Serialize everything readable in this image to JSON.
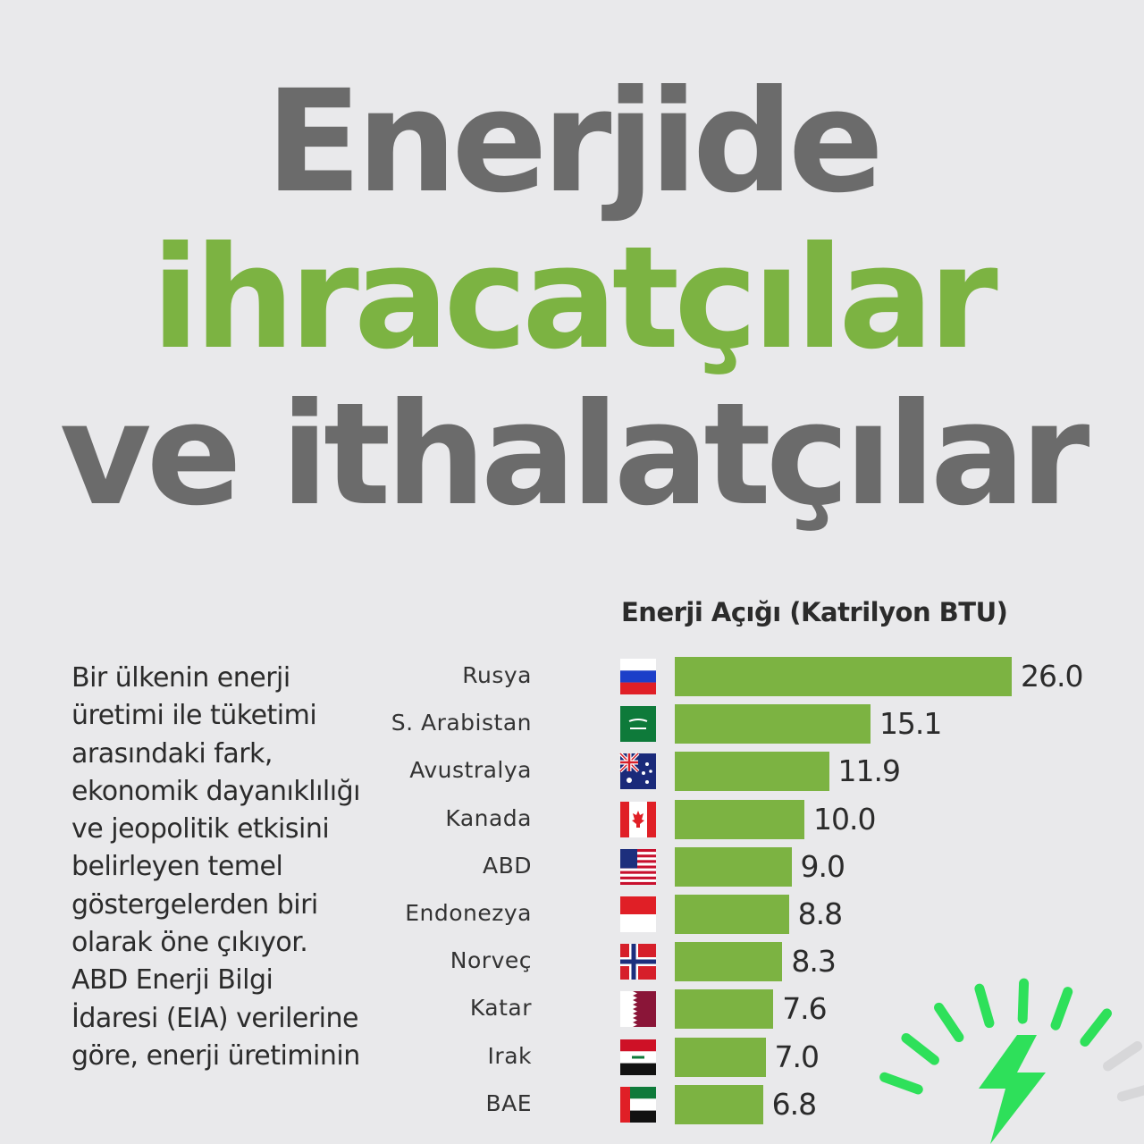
{
  "title": {
    "line1": "Enerjide",
    "line2": "ihracatçılar",
    "line3": "ve ithalatçılar"
  },
  "body_text": "Bir ülkenin enerji üretimi ile tüketimi arasındaki fark, ekonomik dayanıklılığı ve jeopolitik etkisini belirleyen temel göstergelerden biri olarak öne çıkıyor. ABD Enerji Bilgi İdaresi (EIA) verilerine göre, enerji üretiminin",
  "chart_data": {
    "type": "bar",
    "orientation": "horizontal",
    "title": "Enerji Açığı (Katrilyon BTU)",
    "categories": [
      "Rusya",
      "S. Arabistan",
      "Avustralya",
      "Kanada",
      "ABD",
      "Endonezya",
      "Norveç",
      "Katar",
      "Irak",
      "BAE"
    ],
    "values": [
      26.0,
      15.1,
      11.9,
      10.0,
      9.0,
      8.8,
      8.3,
      7.6,
      7.0,
      6.8
    ],
    "value_labels": [
      "26.0",
      "15.1",
      "11.9",
      "10.0",
      "9.0",
      "8.8",
      "8.3",
      "7.6",
      "7.0",
      "6.8"
    ],
    "flags": [
      "russia-flag-icon",
      "saudi-arabia-flag-icon",
      "australia-flag-icon",
      "canada-flag-icon",
      "usa-flag-icon",
      "indonesia-flag-icon",
      "norway-flag-icon",
      "qatar-flag-icon",
      "iraq-flag-icon",
      "uae-flag-icon"
    ],
    "bar_color": "#7cb342"
  },
  "colors": {
    "title_gray": "#6b6b6b",
    "title_green": "#7cb342",
    "gauge_green": "#2ee05a",
    "background": "#e9e9eb"
  }
}
